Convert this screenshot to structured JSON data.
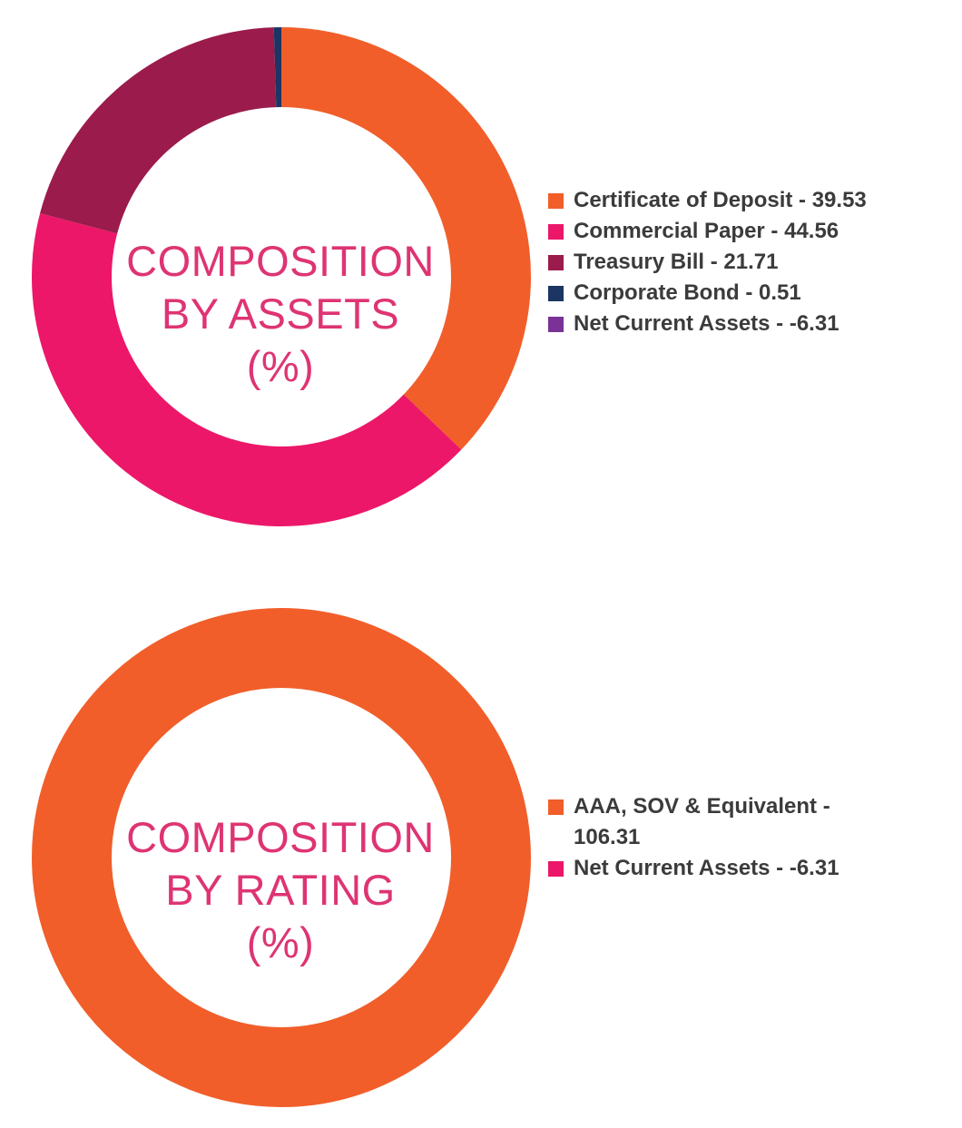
{
  "chart_data": [
    {
      "type": "pie",
      "donut": true,
      "title": "COMPOSITION BY ASSETS (%)",
      "title_lines": [
        "COMPOSITION",
        "BY ASSETS",
        "(%)"
      ],
      "legend_position": "right",
      "series": [
        {
          "name": "Certificate of Deposit",
          "value": 39.53,
          "legend_text": "Certificate of Deposit - 39.53",
          "color": "#f15e2a"
        },
        {
          "name": "Commercial Paper",
          "value": 44.56,
          "legend_text": "Commercial Paper - 44.56",
          "color": "#ec1768"
        },
        {
          "name": "Treasury Bill",
          "value": 21.71,
          "legend_text": "Treasury Bill - 21.71",
          "color": "#9b1b4c"
        },
        {
          "name": "Corporate Bond",
          "value": 0.51,
          "legend_text": "Corporate Bond - 0.51",
          "color": "#1c3562"
        },
        {
          "name": "Net Current Assets",
          "value": -6.31,
          "legend_text": "Net Current Assets - -6.31",
          "color": "#7a3296"
        }
      ]
    },
    {
      "type": "pie",
      "donut": true,
      "title": "COMPOSITION BY RATING (%)",
      "title_lines": [
        "COMPOSITION",
        "BY RATING",
        "(%)"
      ],
      "legend_position": "right",
      "series": [
        {
          "name": "AAA, SOV & Equivalent",
          "value": 106.31,
          "legend_lines": [
            "AAA, SOV & Equivalent -",
            "106.31"
          ],
          "color": "#f15e2a"
        },
        {
          "name": "Net Current Assets",
          "value": -6.31,
          "legend_lines": [
            "Net Current Assets - -6.31"
          ],
          "color": "#ec1768"
        }
      ]
    }
  ]
}
